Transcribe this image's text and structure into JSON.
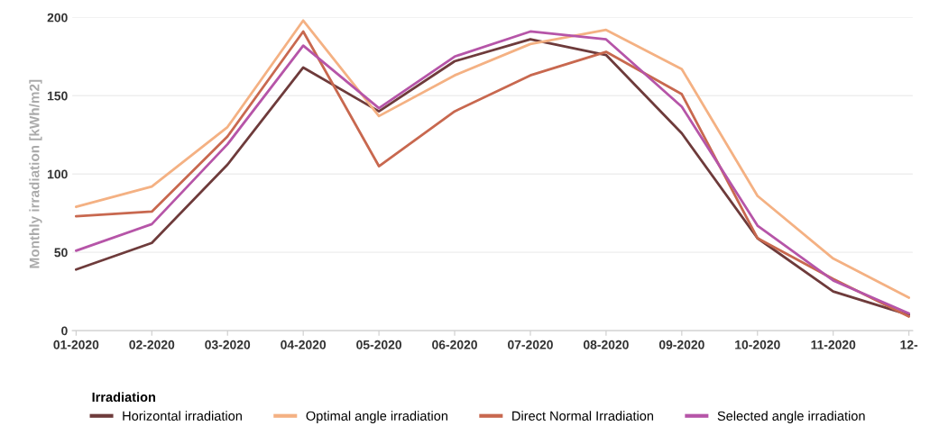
{
  "chart_data": {
    "type": "line",
    "ylabel": "Monthly irradiation [kWh/m2]",
    "legend_title": "Irradiation",
    "legend": "bottom left",
    "categories": [
      "01-2020",
      "02-2020",
      "03-2020",
      "04-2020",
      "05-2020",
      "06-2020",
      "07-2020",
      "08-2020",
      "09-2020",
      "10-2020",
      "11-2020",
      "12-"
    ],
    "series": [
      {
        "name": "Horizontal irradiation",
        "color": "#6e3b3b",
        "values": [
          39,
          56,
          106,
          168,
          140,
          172,
          186,
          176,
          126,
          59,
          25,
          10
        ]
      },
      {
        "name": "Optimal angle irradiation",
        "color": "#f4b183",
        "values": [
          79,
          92,
          130,
          198,
          137,
          163,
          183,
          192,
          167,
          86,
          46,
          21
        ]
      },
      {
        "name": "Direct Normal Irradiation",
        "color": "#c8684f",
        "values": [
          73,
          76,
          124,
          191,
          105,
          140,
          163,
          178,
          151,
          59,
          33,
          9
        ]
      },
      {
        "name": "Selected angle irradiation",
        "color": "#b655a8",
        "values": [
          51,
          68,
          119,
          182,
          142,
          175,
          191,
          186,
          143,
          67,
          32,
          11
        ]
      }
    ],
    "ylim": [
      0,
      200
    ],
    "yticks": [
      0,
      50,
      100,
      150,
      200
    ],
    "grid": "y",
    "marker": "none",
    "line_style": "solid"
  }
}
